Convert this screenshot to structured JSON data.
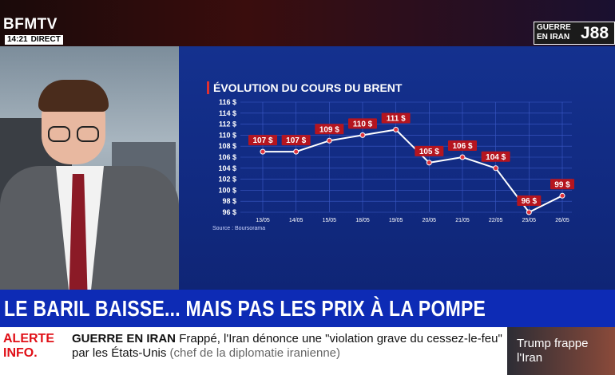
{
  "header": {
    "channel": "BFMTV",
    "time": "14:21",
    "live": "DIRECT",
    "tag_line1": "GUERRE",
    "tag_line2": "EN IRAN",
    "tag_day": "J88"
  },
  "chart_data": {
    "type": "line",
    "title": "ÉVOLUTION DU COURS DU BRENT",
    "source": "Source : Boursorama",
    "categories": [
      "13/05",
      "14/05",
      "15/05",
      "18/05",
      "19/05",
      "20/05",
      "21/05",
      "22/05",
      "25/05",
      "26/05"
    ],
    "values": [
      107,
      107,
      109,
      110,
      111,
      105,
      106,
      104,
      96,
      99
    ],
    "data_labels": [
      "107 $",
      "107 $",
      "109 $",
      "110 $",
      "111 $",
      "105 $",
      "106 $",
      "104 $",
      "96 $",
      "99 $"
    ],
    "yticks": [
      "96 $",
      "98 $",
      "100 $",
      "102 $",
      "104 $",
      "106 $",
      "108 $",
      "110 $",
      "112 $",
      "114 $",
      "116 $"
    ],
    "ylim": [
      96,
      116
    ],
    "grid": true,
    "colors": {
      "line": "#ffffff",
      "label_bg": "#b5151f",
      "marker": "#e0333d"
    }
  },
  "headline": "LE BARIL BAISSE... MAIS PAS LES PRIX À LA POMPE",
  "ticker": {
    "alert": "ALERTE INFO.",
    "topic": "GUERRE EN IRAN",
    "text": "Frappé, l'Iran dénonce une \"violation grave du cessez-le-feu\" par les États-Unis",
    "text_grey": "(chef de la diplomatie iranienne)",
    "promo": "Trump frappe l'Iran"
  }
}
